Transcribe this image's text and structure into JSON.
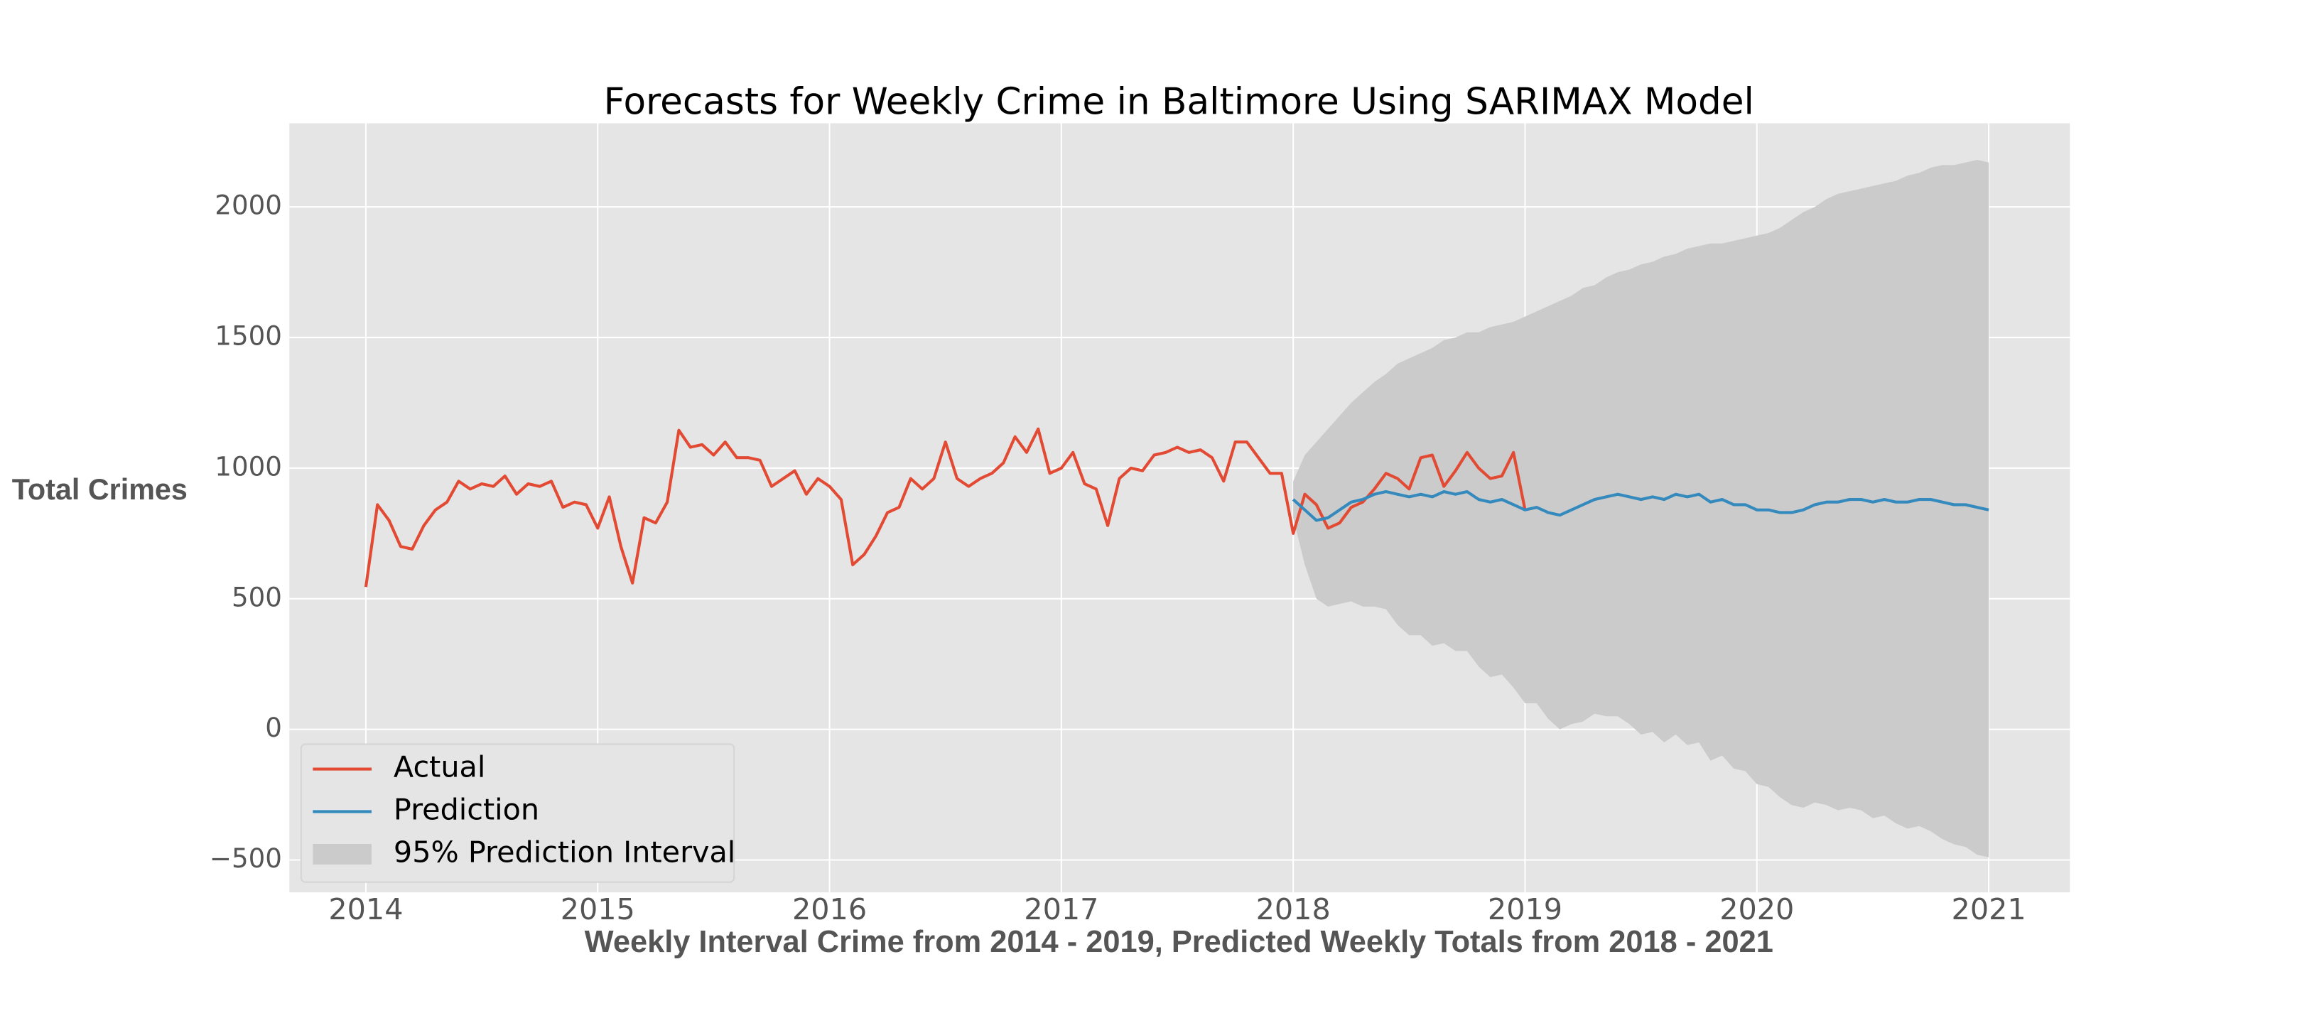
{
  "chart_data": {
    "type": "line",
    "title": "Forecasts for Weekly Crime in Baltimore Using SARIMAX Model",
    "xlabel": "Weekly Interval Crime from 2014 - 2019, Predicted Weekly Totals from 2018 - 2021",
    "ylabel": "Total Crimes",
    "xlim": [
      2013.67,
      2021.35
    ],
    "ylim": [
      -624,
      2320
    ],
    "xticks": [
      2014,
      2015,
      2016,
      2017,
      2018,
      2019,
      2020,
      2021
    ],
    "yticks": [
      {
        "value": -500,
        "label": "−500"
      },
      0,
      500,
      1000,
      1500,
      2000
    ],
    "grid": true,
    "legend": "lower left",
    "series": [
      {
        "name": "Actual",
        "color": "#e24a33",
        "x": [
          2014.0,
          2014.05,
          2014.1,
          2014.15,
          2014.2,
          2014.25,
          2014.3,
          2014.35,
          2014.4,
          2014.45,
          2014.5,
          2014.55,
          2014.6,
          2014.65,
          2014.7,
          2014.75,
          2014.8,
          2014.85,
          2014.9,
          2014.95,
          2015.0,
          2015.05,
          2015.1,
          2015.15,
          2015.2,
          2015.25,
          2015.3,
          2015.35,
          2015.4,
          2015.45,
          2015.5,
          2015.55,
          2015.6,
          2015.65,
          2015.7,
          2015.75,
          2015.8,
          2015.85,
          2015.9,
          2015.95,
          2016.0,
          2016.05,
          2016.1,
          2016.15,
          2016.2,
          2016.25,
          2016.3,
          2016.35,
          2016.4,
          2016.45,
          2016.5,
          2016.55,
          2016.6,
          2016.65,
          2016.7,
          2016.75,
          2016.8,
          2016.85,
          2016.9,
          2016.95,
          2017.0,
          2017.05,
          2017.1,
          2017.15,
          2017.2,
          2017.25,
          2017.3,
          2017.35,
          2017.4,
          2017.45,
          2017.5,
          2017.55,
          2017.6,
          2017.65,
          2017.7,
          2017.75,
          2017.8,
          2017.85,
          2017.9,
          2017.95,
          2018.0,
          2018.05,
          2018.1,
          2018.15,
          2018.2,
          2018.25,
          2018.3,
          2018.35,
          2018.4,
          2018.45,
          2018.5,
          2018.55,
          2018.6,
          2018.65,
          2018.7,
          2018.75,
          2018.8,
          2018.85,
          2018.9,
          2018.95,
          2019.0
        ],
        "values": [
          545,
          860,
          800,
          700,
          690,
          780,
          840,
          870,
          950,
          920,
          940,
          930,
          970,
          900,
          940,
          930,
          950,
          850,
          870,
          860,
          770,
          890,
          700,
          560,
          810,
          790,
          870,
          1145,
          1080,
          1090,
          1050,
          1100,
          1040,
          1040,
          1030,
          930,
          960,
          990,
          900,
          960,
          930,
          880,
          630,
          670,
          740,
          830,
          850,
          960,
          920,
          960,
          1100,
          960,
          930,
          960,
          980,
          1020,
          1120,
          1060,
          1150,
          980,
          1000,
          1060,
          940,
          920,
          780,
          960,
          1000,
          990,
          1050,
          1060,
          1080,
          1060,
          1070,
          1040,
          950,
          1100,
          1100,
          1040,
          980,
          980,
          750,
          900,
          860,
          770,
          790,
          850,
          870,
          920,
          980,
          960,
          920,
          1040,
          1050,
          930,
          990,
          1060,
          1000,
          960,
          970,
          1060,
          840
        ]
      },
      {
        "name": "Prediction",
        "color": "#348abd",
        "x": [
          2018.0,
          2018.05,
          2018.1,
          2018.15,
          2018.2,
          2018.25,
          2018.3,
          2018.35,
          2018.4,
          2018.45,
          2018.5,
          2018.55,
          2018.6,
          2018.65,
          2018.7,
          2018.75,
          2018.8,
          2018.85,
          2018.9,
          2018.95,
          2019.0,
          2019.05,
          2019.1,
          2019.15,
          2019.2,
          2019.25,
          2019.3,
          2019.35,
          2019.4,
          2019.45,
          2019.5,
          2019.55,
          2019.6,
          2019.65,
          2019.7,
          2019.75,
          2019.8,
          2019.85,
          2019.9,
          2019.95,
          2020.0,
          2020.05,
          2020.1,
          2020.15,
          2020.2,
          2020.25,
          2020.3,
          2020.35,
          2020.4,
          2020.45,
          2020.5,
          2020.55,
          2020.6,
          2020.65,
          2020.7,
          2020.75,
          2020.8,
          2020.85,
          2020.9,
          2020.95,
          2021.0
        ],
        "values": [
          880,
          840,
          800,
          810,
          840,
          870,
          880,
          900,
          910,
          900,
          890,
          900,
          890,
          910,
          900,
          910,
          880,
          870,
          880,
          860,
          840,
          850,
          830,
          820,
          840,
          860,
          880,
          890,
          900,
          890,
          880,
          890,
          880,
          900,
          890,
          900,
          870,
          880,
          860,
          860,
          840,
          840,
          830,
          830,
          840,
          860,
          870,
          870,
          880,
          880,
          870,
          880,
          870,
          870,
          880,
          880,
          870,
          860,
          860,
          850,
          840
        ]
      }
    ],
    "interval": {
      "name": "95% Prediction Interval",
      "color": "#cbcbcb",
      "x": [
        2018.0,
        2018.05,
        2018.1,
        2018.15,
        2018.2,
        2018.25,
        2018.3,
        2018.35,
        2018.4,
        2018.45,
        2018.5,
        2018.55,
        2018.6,
        2018.65,
        2018.7,
        2018.75,
        2018.8,
        2018.85,
        2018.9,
        2018.95,
        2019.0,
        2019.05,
        2019.1,
        2019.15,
        2019.2,
        2019.25,
        2019.3,
        2019.35,
        2019.4,
        2019.45,
        2019.5,
        2019.55,
        2019.6,
        2019.65,
        2019.7,
        2019.75,
        2019.8,
        2019.85,
        2019.9,
        2019.95,
        2020.0,
        2020.05,
        2020.1,
        2020.15,
        2020.2,
        2020.25,
        2020.3,
        2020.35,
        2020.4,
        2020.45,
        2020.5,
        2020.55,
        2020.6,
        2020.65,
        2020.7,
        2020.75,
        2020.8,
        2020.85,
        2020.9,
        2020.95,
        2021.0
      ],
      "lower": [
        810,
        630,
        500,
        470,
        480,
        490,
        470,
        470,
        460,
        400,
        360,
        360,
        320,
        330,
        300,
        300,
        240,
        200,
        210,
        160,
        100,
        100,
        40,
        0,
        20,
        30,
        60,
        50,
        50,
        20,
        -20,
        -10,
        -50,
        -20,
        -60,
        -50,
        -120,
        -100,
        -150,
        -160,
        -210,
        -220,
        -260,
        -290,
        -300,
        -280,
        -290,
        -310,
        -300,
        -310,
        -340,
        -330,
        -360,
        -380,
        -370,
        -390,
        -420,
        -440,
        -450,
        -480,
        -490
      ],
      "upper": [
        950,
        1050,
        1100,
        1150,
        1200,
        1250,
        1290,
        1330,
        1360,
        1400,
        1420,
        1440,
        1460,
        1490,
        1500,
        1520,
        1520,
        1540,
        1550,
        1560,
        1580,
        1600,
        1620,
        1640,
        1660,
        1690,
        1700,
        1730,
        1750,
        1760,
        1780,
        1790,
        1810,
        1820,
        1840,
        1850,
        1860,
        1860,
        1870,
        1880,
        1890,
        1900,
        1920,
        1950,
        1980,
        2000,
        2030,
        2050,
        2060,
        2070,
        2080,
        2090,
        2100,
        2120,
        2130,
        2150,
        2160,
        2160,
        2170,
        2180,
        2170
      ]
    }
  }
}
